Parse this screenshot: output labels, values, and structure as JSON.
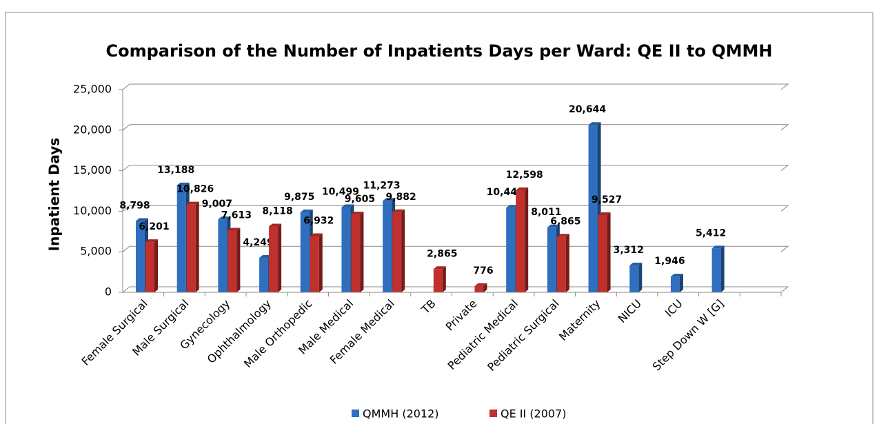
{
  "chart_data": {
    "type": "bar",
    "title": "Comparison of the Number of Inpatients Days per Ward:  QE II to QMMH",
    "ylabel": "Inpatient Days",
    "categories": [
      "Female Surgical",
      "Male Surgical",
      "Gynecology",
      "Ophthalmology",
      "Male Orthopedic",
      "Male Medical",
      "Female Medical",
      "TB",
      "Private",
      "Pediatric Medical",
      "Pediatric Surgical",
      "Maternity",
      "NICU",
      "ICU",
      "Step Down W [G]",
      null
    ],
    "series": [
      {
        "name": "QMMH (2012)",
        "color": "#2e6fc0",
        "values": [
          8798,
          13188,
          9007,
          4249,
          9875,
          10499,
          11273,
          null,
          null,
          10440,
          8011,
          20644,
          3312,
          1946,
          5412,
          null
        ],
        "value_labels": [
          "8,798",
          "13,188",
          "9,007",
          "4,249",
          "9,875",
          "10,499",
          "11,273",
          null,
          null,
          "10,440",
          "8,011",
          "20,644",
          "3,312",
          "1,946",
          "5,412",
          null
        ]
      },
      {
        "name": "QE II (2007)",
        "color": "#c0302c",
        "values": [
          6201,
          10826,
          7613,
          8118,
          6932,
          9605,
          9882,
          2865,
          776,
          12598,
          6865,
          9527,
          null,
          null,
          null,
          null
        ],
        "value_labels": [
          "6,201",
          "10,826",
          "7,613",
          "8,118",
          "6,932",
          "9,605",
          "9,882",
          "2,865",
          "776",
          "12,598",
          "6,865",
          "9,527",
          null,
          null,
          null,
          null
        ]
      }
    ],
    "ylim": [
      0,
      25000
    ],
    "yticks": [
      0,
      {
        "value": 5000,
        "label": "5,000"
      },
      {
        "value": 10000,
        "label": "10,000"
      },
      {
        "value": 15000,
        "label": "15,000"
      },
      {
        "value": 20000,
        "label": "20,000"
      },
      {
        "value": 25000,
        "label": "25,000"
      }
    ],
    "grid": true,
    "legend": "bottom"
  }
}
